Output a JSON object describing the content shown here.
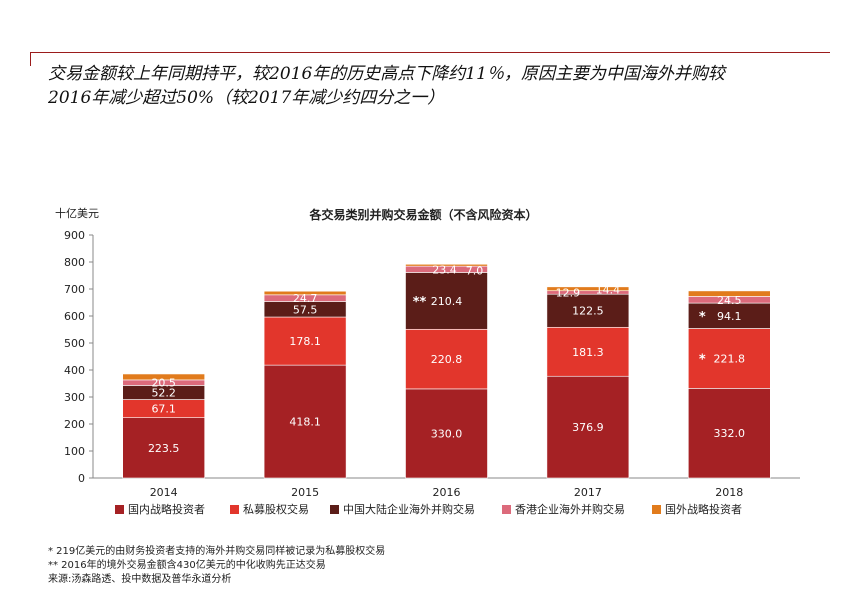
{
  "headline": {
    "line1": "交易金额较上年同期持平，较2016年的历史高点下降约11％，原因主要为中国海外并购较",
    "line2": "2016年减少超过50%（较2017年减少约四分之一）"
  },
  "chart_data": {
    "type": "bar",
    "stacked": true,
    "title": "各交易类别并购交易金额（不含风险资本）",
    "ylabel": "十亿美元",
    "xlabel": "",
    "ylim": [
      0,
      900
    ],
    "yticks": [
      0,
      100,
      200,
      300,
      400,
      500,
      600,
      700,
      800,
      900
    ],
    "categories": [
      "2014",
      "2015",
      "2016",
      "2017",
      "2018"
    ],
    "legend_position": "bottom",
    "series": [
      {
        "name": "国内战略投资者",
        "color": "#a52124",
        "values": [
          223.5,
          418.1,
          330.0,
          376.9,
          332.0
        ],
        "labels": [
          "223.5",
          "418.1",
          "330.0",
          "376.9",
          "332.0"
        ]
      },
      {
        "name": "私募股权交易",
        "color": "#e2362c",
        "values": [
          67.1,
          178.1,
          220.8,
          181.3,
          221.8
        ],
        "labels": [
          "67.1",
          "178.1",
          "220.8",
          "181.3",
          "221.8"
        ]
      },
      {
        "name": "中国大陆企业海外并购交易",
        "color": "#5b1d18",
        "values": [
          52.2,
          57.5,
          210.4,
          122.5,
          94.1
        ],
        "labels": [
          "52.2",
          "57.5",
          "210.4",
          "122.5",
          "94.1"
        ]
      },
      {
        "name": "香港企业海外并购交易",
        "color": "#dc6a7b",
        "values": [
          20.5,
          24.7,
          23.4,
          12.9,
          24.5
        ],
        "labels": [
          "20.5",
          "24.7",
          "23.4",
          "12.9",
          "24.5"
        ]
      },
      {
        "name": "国外战略投资者",
        "color": "#e17b1c",
        "values": [
          22.0,
          13.4,
          7.0,
          14.4,
          20.6
        ],
        "labels": [
          "22.0",
          "13.4",
          "7.0",
          "14.4",
          "20.6"
        ]
      }
    ],
    "annotations": [
      {
        "category": "2016",
        "series": "中国大陆企业海外并购交易",
        "text": "**"
      },
      {
        "category": "2018",
        "series": "私募股权交易",
        "text": "*"
      },
      {
        "category": "2018",
        "series": "中国大陆企业海外并购交易",
        "text": "*"
      }
    ]
  },
  "footnotes": {
    "note1": "*  219亿美元的由财务投资者支持的海外并购交易同样被记录为私募股权交易",
    "note2": "** 2016年的境外交易金额含430亿美元的中化收购先正达交易",
    "source": "来源:汤森路透、投中数据及普华永道分析"
  }
}
